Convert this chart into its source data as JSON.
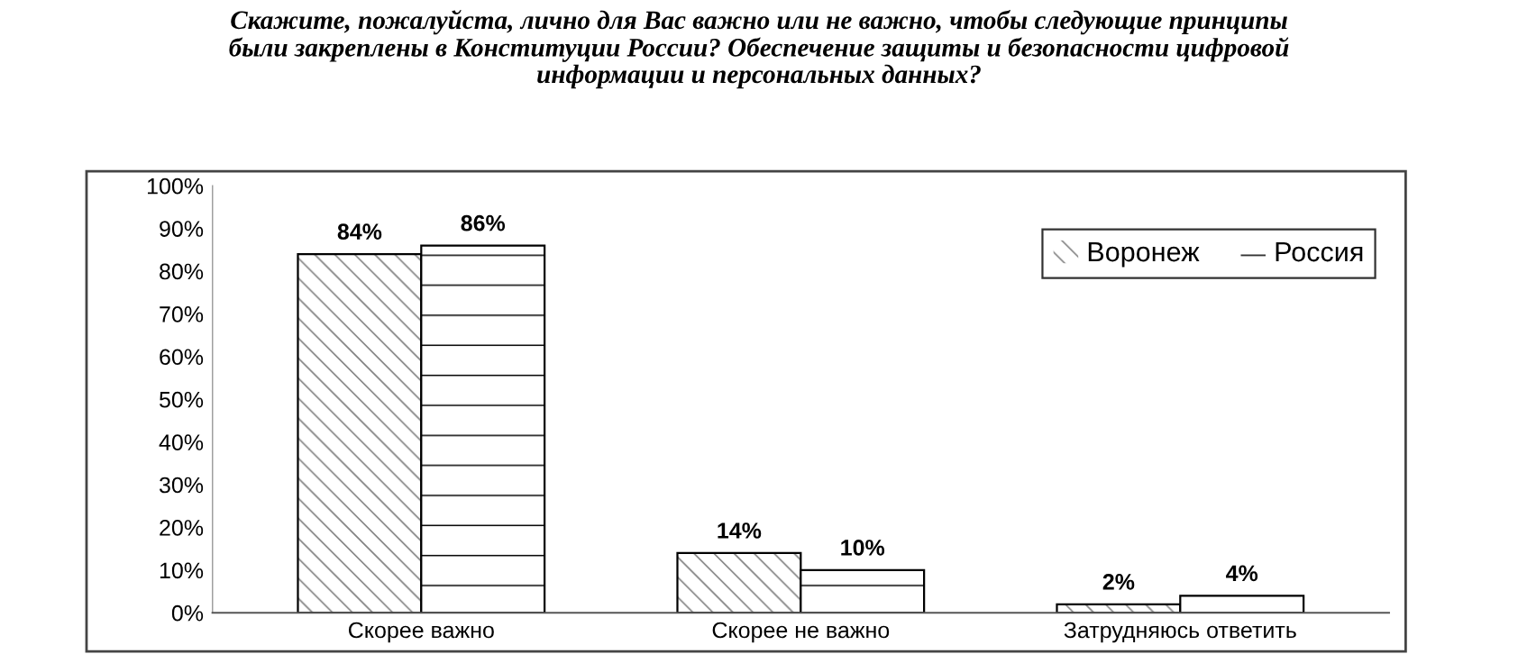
{
  "chart_data": {
    "type": "bar",
    "title": "Скажите, пожалуйста, лично для Вас важно или не важно, чтобы следующие принципы\nбыли закреплены в Конституции России? Обеспечение защиты и безопасности цифровой\nинформации и персональных данных?",
    "categories": [
      "Скорее важно",
      "Скорее не важно",
      "Затрудняюсь ответить"
    ],
    "series": [
      {
        "name": "Воронеж",
        "color": "#ffffff",
        "values": [
          84,
          14,
          2
        ],
        "value_labels": [
          "84%",
          "14%",
          "2%"
        ]
      },
      {
        "name": "Россия",
        "color": "#ffffff",
        "values": [
          86,
          10,
          4
        ],
        "value_labels": [
          "86%",
          "10%",
          "4%"
        ]
      }
    ],
    "ylim": [
      0,
      100
    ],
    "yticks": [
      {
        "value": 0,
        "label": "0%"
      },
      {
        "value": 10,
        "label": "10%"
      },
      {
        "value": 20,
        "label": "20%"
      },
      {
        "value": 30,
        "label": "30%"
      },
      {
        "value": 40,
        "label": "40%"
      },
      {
        "value": 50,
        "label": "50%"
      },
      {
        "value": 60,
        "label": "60%"
      },
      {
        "value": 70,
        "label": "70%"
      },
      {
        "value": 80,
        "label": "80%"
      },
      {
        "value": 90,
        "label": "90%"
      },
      {
        "value": 100,
        "label": "100%"
      }
    ],
    "grid": false,
    "legend": "top right"
  }
}
